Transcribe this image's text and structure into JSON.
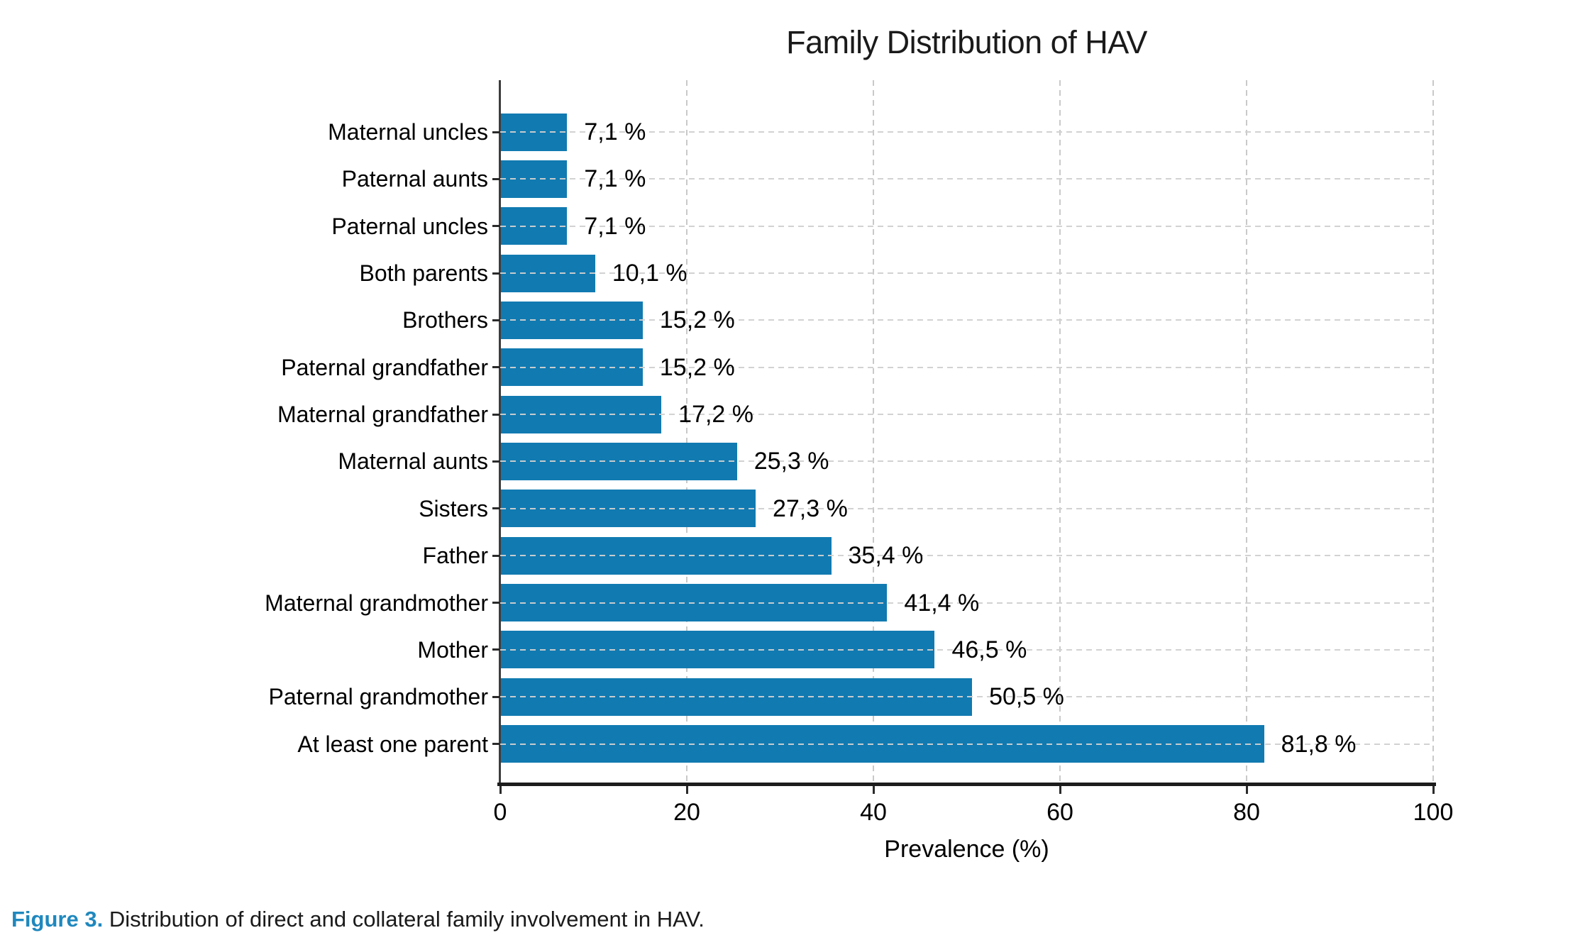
{
  "title": "Family Distribution of HAV",
  "chart_data": {
    "type": "bar",
    "orientation": "horizontal",
    "title": "Family Distribution of HAV",
    "xlabel": "Prevalence (%)",
    "xlim": [
      0,
      100
    ],
    "xticks": [
      0,
      20,
      40,
      60,
      80,
      100
    ],
    "grid": true,
    "legend": false,
    "bar_color": "#117ab1",
    "categories": [
      "Maternal uncles",
      "Paternal aunts",
      "Paternal uncles",
      "Both parents",
      "Brothers",
      "Paternal grandfather",
      "Maternal grandfather",
      "Maternal aunts",
      "Sisters",
      "Father",
      "Maternal grandmother",
      "Mother",
      "Paternal grandmother",
      "At least one parent"
    ],
    "values": [
      7.1,
      7.1,
      7.1,
      10.1,
      15.2,
      15.2,
      17.2,
      25.3,
      27.3,
      35.4,
      41.4,
      46.5,
      50.5,
      81.8
    ],
    "value_labels": [
      "7,1 %",
      "7,1 %",
      "7,1 %",
      "10,1 %",
      "15,2 %",
      "15,2 %",
      "17,2 %",
      "25,3 %",
      "27,3 %",
      "35,4 %",
      "41,4 %",
      "46,5 %",
      "50,5 %",
      "81,8 %"
    ]
  },
  "caption": {
    "label": "Figure 3.",
    "text": " Distribution of direct and collateral family involvement in HAV."
  }
}
